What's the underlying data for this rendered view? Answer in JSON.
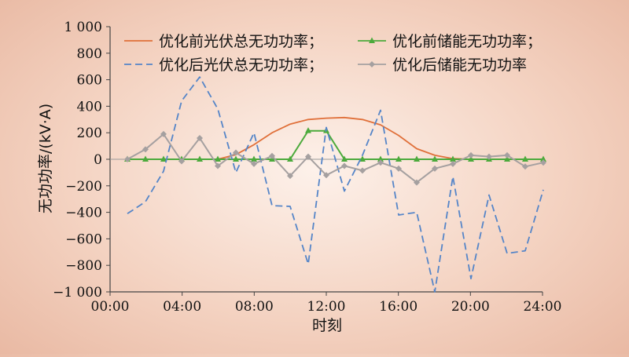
{
  "chart_data": {
    "type": "line",
    "xlabel": "时刻",
    "ylabel": "无功功率/(kV·A)",
    "xlim": [
      1,
      24
    ],
    "ylim": [
      -1000,
      1000
    ],
    "grid": false,
    "legend_position": "top",
    "x_ticks": [
      "00:00",
      "04:00",
      "08:00",
      "12:00",
      "16:00",
      "20:00",
      "24:00"
    ],
    "y_ticks": [
      "1 000",
      "800",
      "600",
      "400",
      "200",
      "0",
      "−200",
      "−400",
      "−600",
      "−800",
      "−1 000"
    ],
    "series": [
      {
        "name": "优化前光伏总无功功率；",
        "color": "#e0703a",
        "style": "solid",
        "marker": "none",
        "x": [
          1,
          2,
          3,
          4,
          5,
          6,
          7,
          8,
          9,
          10,
          11,
          12,
          13,
          14,
          15,
          16,
          17,
          18,
          19,
          20,
          21,
          22,
          23,
          24
        ],
        "values": [
          0,
          0,
          0,
          0,
          0,
          0,
          35,
          110,
          200,
          265,
          300,
          310,
          315,
          300,
          260,
          180,
          80,
          30,
          5,
          0,
          0,
          0,
          0,
          0
        ]
      },
      {
        "name": "优化前储能无功功率；",
        "color": "#4caa3c",
        "style": "solid",
        "marker": "triangle",
        "x": [
          1,
          2,
          3,
          4,
          5,
          6,
          7,
          8,
          9,
          10,
          11,
          12,
          13,
          14,
          15,
          16,
          17,
          18,
          19,
          20,
          21,
          22,
          23,
          24
        ],
        "values": [
          0,
          0,
          0,
          0,
          0,
          0,
          0,
          0,
          0,
          0,
          215,
          215,
          0,
          0,
          0,
          0,
          0,
          0,
          0,
          0,
          0,
          0,
          0,
          0
        ]
      },
      {
        "name": "优化后光伏总无功功率；",
        "color": "#5585c8",
        "style": "dashed",
        "marker": "none",
        "x": [
          1,
          2,
          3,
          4,
          5,
          6,
          7,
          8,
          9,
          10,
          11,
          12,
          13,
          14,
          15,
          16,
          17,
          18,
          19,
          20,
          21,
          22,
          23,
          24
        ],
        "values": [
          -410,
          -320,
          -90,
          440,
          620,
          380,
          -100,
          200,
          -350,
          -355,
          -790,
          240,
          -240,
          30,
          370,
          -420,
          -400,
          -1000,
          -130,
          -900,
          -270,
          -710,
          -690,
          -230
        ]
      },
      {
        "name": "优化后储能无功功率",
        "color": "#a5a0a0",
        "style": "solid",
        "marker": "diamond",
        "x": [
          1,
          2,
          3,
          4,
          5,
          6,
          7,
          8,
          9,
          10,
          11,
          12,
          13,
          14,
          15,
          16,
          17,
          18,
          19,
          20,
          21,
          22,
          23,
          24
        ],
        "values": [
          0,
          75,
          190,
          -15,
          160,
          -50,
          50,
          -35,
          25,
          -125,
          20,
          -120,
          -50,
          -85,
          -25,
          -70,
          -175,
          -70,
          -35,
          30,
          20,
          30,
          -55,
          -25
        ]
      }
    ]
  }
}
